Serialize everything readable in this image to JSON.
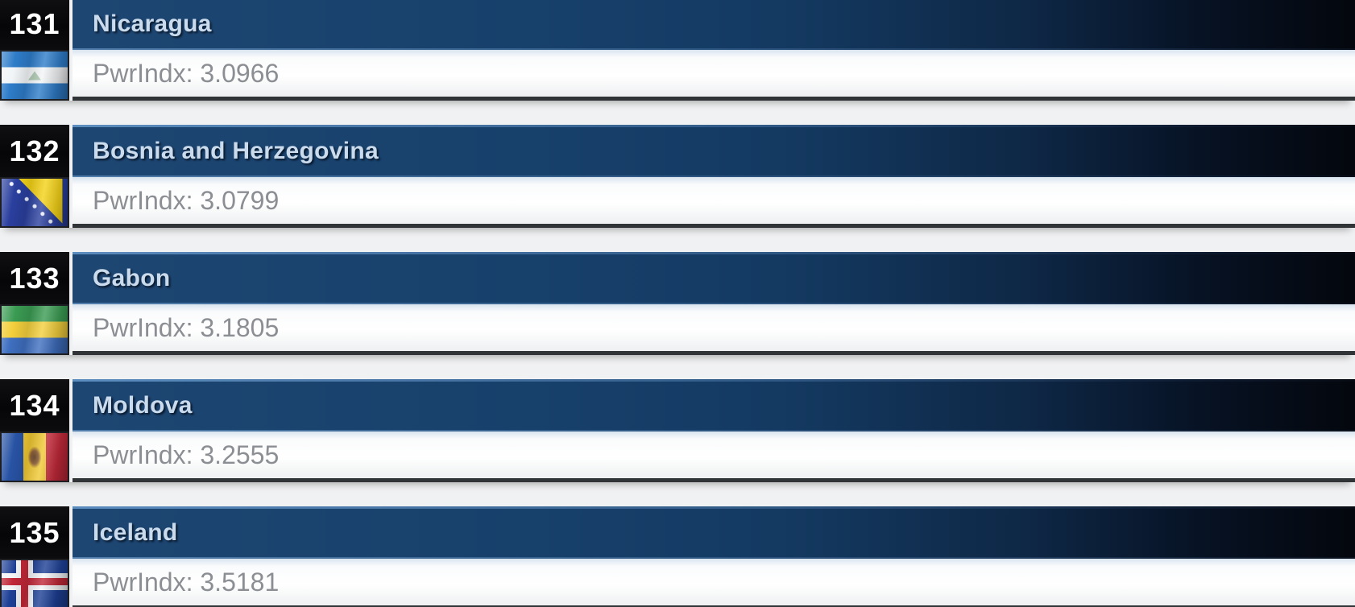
{
  "rows": [
    {
      "rank": "131",
      "country": "Nicaragua",
      "pwr_text": "PwrIndx: 3.0966",
      "pwr_value": "3.0966",
      "flag": "nicaragua",
      "flag_icon": "nicaragua-flag-icon"
    },
    {
      "rank": "132",
      "country": "Bosnia and Herzegovina",
      "pwr_text": "PwrIndx: 3.0799",
      "pwr_value": "3.0799",
      "flag": "bosnia",
      "flag_icon": "bosnia-and-herzegovina-flag-icon"
    },
    {
      "rank": "133",
      "country": "Gabon",
      "pwr_text": "PwrIndx: 3.1805",
      "pwr_value": "3.1805",
      "flag": "gabon",
      "flag_icon": "gabon-flag-icon"
    },
    {
      "rank": "134",
      "country": "Moldova",
      "pwr_text": "PwrIndx: 3.2555",
      "pwr_value": "3.2555",
      "flag": "moldova",
      "flag_icon": "moldova-flag-icon"
    },
    {
      "rank": "135",
      "country": "Iceland",
      "pwr_text": "PwrIndx: 3.5181",
      "pwr_value": "3.5181",
      "flag": "iceland",
      "flag_icon": "iceland-flag-icon"
    }
  ],
  "colors": {
    "header_navy": "#17406b",
    "header_dark": "#04070d",
    "rank_box_bg": "#0a0a0c",
    "country_text": "#c9dbec",
    "pwr_text": "#8b8e93",
    "bar_border": "#303437"
  }
}
